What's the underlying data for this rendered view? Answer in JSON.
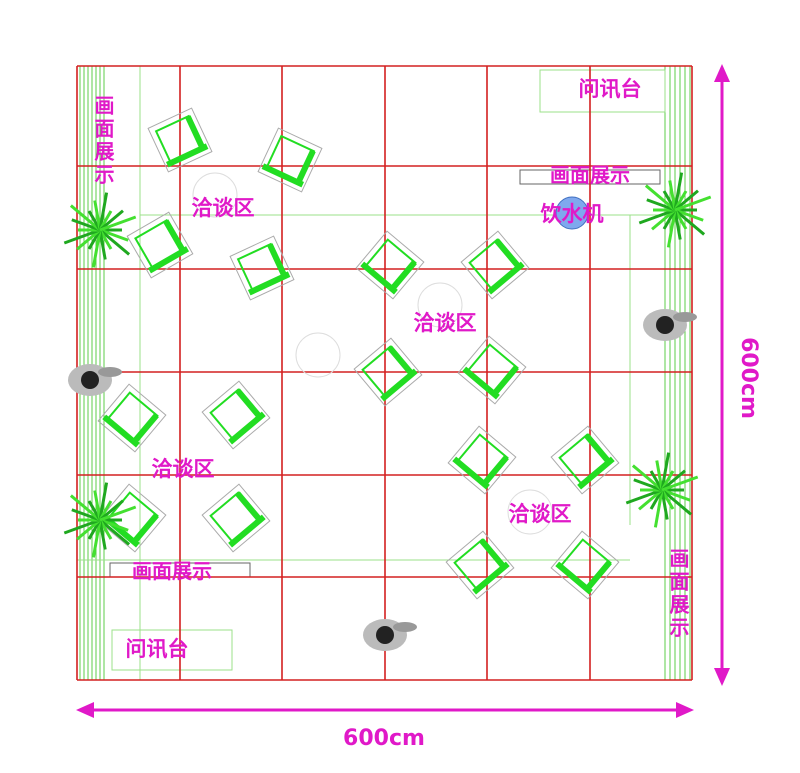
{
  "colors": {
    "grid": "#d42020",
    "furniture": "#22dd22",
    "label": "#e019c8",
    "dimension": "#e019c8",
    "water_cooler": "#7fa8ee"
  },
  "labels": {
    "negotiation_zones": [
      "洽谈区",
      "洽谈区",
      "洽谈区",
      "洽谈区"
    ],
    "reception_desks": [
      "问讯台",
      "问讯台"
    ],
    "display_horizontal": [
      "画面展示",
      "画面展示"
    ],
    "display_vertical": [
      "画面展示",
      "画面展示"
    ],
    "water_dispenser": "饮水机"
  },
  "dimensions": {
    "width": "600cm",
    "height": "600cm"
  },
  "grid": {
    "rows": 6,
    "columns": 6
  }
}
